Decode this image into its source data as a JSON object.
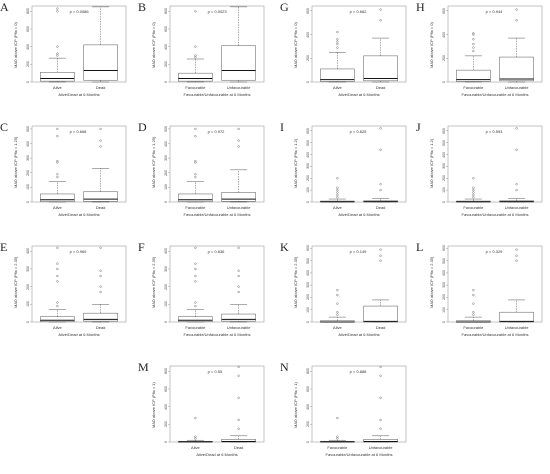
{
  "chart_data": [
    {
      "panel": "A",
      "type": "box",
      "ylabel": "MAD above ICP (Pfix = 0)",
      "xlabel": "Alive/Dead at 6 Months",
      "categories": [
        "Alive",
        "Dead"
      ],
      "p_text": "p = 0.0086",
      "yticks": [
        0,
        200,
        400,
        600,
        800
      ],
      "ylim": [
        0,
        860
      ],
      "boxes": [
        {
          "min": 0,
          "q1": 10,
          "median": 40,
          "q3": 110,
          "max": 270,
          "outliers": [
            300,
            320,
            400,
            800,
            830
          ]
        },
        {
          "min": 0,
          "q1": 20,
          "median": 130,
          "q3": 420,
          "max": 850,
          "outliers": []
        }
      ]
    },
    {
      "panel": "B",
      "type": "box",
      "ylabel": "MAD above ICP (Pfix = 0)",
      "xlabel": "Favourable/Unfavourable at 6 Months",
      "categories": [
        "Favourable",
        "Unfavourable"
      ],
      "p_text": "p = 0.0023",
      "yticks": [
        0,
        200,
        400,
        600,
        800
      ],
      "ylim": [
        0,
        860
      ],
      "boxes": [
        {
          "min": 0,
          "q1": 10,
          "median": 40,
          "q3": 100,
          "max": 260,
          "outliers": [
            280,
            300,
            400,
            800
          ]
        },
        {
          "min": 0,
          "q1": 20,
          "median": 130,
          "q3": 410,
          "max": 850,
          "outliers": []
        }
      ]
    },
    {
      "panel": "G",
      "type": "box",
      "ylabel": "MAD above ICP (Pfix = 0)",
      "xlabel": "Alive/Dead at 6 Months",
      "categories": [
        "Alive",
        "Dead"
      ],
      "p_text": "p = 0.662",
      "yticks": [
        0,
        200,
        400,
        600
      ],
      "ylim": [
        0,
        640
      ],
      "boxes": [
        {
          "min": 0,
          "q1": 5,
          "median": 20,
          "q3": 110,
          "max": 250,
          "outliers": [
            290,
            320,
            340,
            360,
            420
          ]
        },
        {
          "min": 0,
          "q1": 10,
          "median": 30,
          "q3": 220,
          "max": 370,
          "outliers": [
            520,
            610
          ]
        }
      ]
    },
    {
      "panel": "H",
      "type": "box",
      "ylabel": "MAD above ICP (Pfix = 0)",
      "xlabel": "Favourable/Unfavourable at 6 Months",
      "categories": [
        "Favourable",
        "Unfavourable"
      ],
      "p_text": "p = 0.944",
      "yticks": [
        0,
        200,
        400,
        600
      ],
      "ylim": [
        0,
        640
      ],
      "boxes": [
        {
          "min": 0,
          "q1": 5,
          "median": 20,
          "q3": 100,
          "max": 220,
          "outliers": [
            260,
            290,
            320,
            360,
            400,
            410
          ]
        },
        {
          "min": 0,
          "q1": 10,
          "median": 25,
          "q3": 210,
          "max": 370,
          "outliers": [
            520,
            610
          ]
        }
      ]
    },
    {
      "panel": "C",
      "type": "box",
      "ylabel": "MAD above ICP (Pfix = 1.25)",
      "xlabel": "Alive/Dead at 6 Months",
      "categories": [
        "Alive",
        "Dead"
      ],
      "p_text": "p = 0.668",
      "yticks": [
        0,
        100,
        200,
        300,
        400,
        500
      ],
      "ylim": [
        0,
        520
      ],
      "boxes": [
        {
          "min": 0,
          "q1": 3,
          "median": 15,
          "q3": 55,
          "max": 140,
          "outliers": [
            170,
            190,
            270,
            280,
            450,
            500
          ]
        },
        {
          "min": 0,
          "q1": 5,
          "median": 20,
          "q3": 70,
          "max": 230,
          "outliers": [
            380,
            420,
            500
          ]
        }
      ]
    },
    {
      "panel": "D",
      "type": "box",
      "ylabel": "MAD above ICP (Pfix = 1.25)",
      "xlabel": "Favourable/Unfavourable at 6 Months",
      "categories": [
        "Favourable",
        "Unfavourable"
      ],
      "p_text": "p = 0.972",
      "yticks": [
        0,
        100,
        200,
        300,
        400,
        500
      ],
      "ylim": [
        0,
        520
      ],
      "boxes": [
        {
          "min": 0,
          "q1": 3,
          "median": 15,
          "q3": 55,
          "max": 140,
          "outliers": [
            170,
            190,
            270,
            280,
            450,
            500
          ]
        },
        {
          "min": 0,
          "q1": 5,
          "median": 20,
          "q3": 65,
          "max": 220,
          "outliers": [
            380,
            420,
            500
          ]
        }
      ]
    },
    {
      "panel": "I",
      "type": "box",
      "ylabel": "MAD above ICP (Pfix = 1.2)",
      "xlabel": "Alive/Dead at 6 Months",
      "categories": [
        "Alive",
        "Dead"
      ],
      "p_text": "p = 0.825",
      "yticks": [
        0,
        100,
        200,
        300,
        400,
        500,
        600
      ],
      "ylim": [
        0,
        640
      ],
      "boxes": [
        {
          "min": 0,
          "q1": 0,
          "median": 2,
          "q3": 8,
          "max": 25,
          "outliers": [
            40,
            60,
            80,
            100,
            120,
            200
          ]
        },
        {
          "min": 0,
          "q1": 0,
          "median": 3,
          "q3": 10,
          "max": 30,
          "outliers": [
            100,
            150,
            440,
            620
          ]
        }
      ]
    },
    {
      "panel": "J",
      "type": "box",
      "ylabel": "MAD above ICP (Pfix = 1.2)",
      "xlabel": "Favourable/Unfavourable at 6 Months",
      "categories": [
        "Favourable",
        "Unfavourable"
      ],
      "p_text": "p = 0.593",
      "yticks": [
        0,
        100,
        200,
        300,
        400,
        500,
        600
      ],
      "ylim": [
        0,
        640
      ],
      "boxes": [
        {
          "min": 0,
          "q1": 0,
          "median": 2,
          "q3": 8,
          "max": 25,
          "outliers": [
            40,
            60,
            80,
            100,
            120,
            200
          ]
        },
        {
          "min": 0,
          "q1": 0,
          "median": 3,
          "q3": 10,
          "max": 30,
          "outliers": [
            100,
            150,
            440,
            620
          ]
        }
      ]
    },
    {
      "panel": "E",
      "type": "box",
      "ylabel": "MAD above ICP (Pfix = 2.35)",
      "xlabel": "Alive/Dead at 6 Months",
      "categories": [
        "Alive",
        "Dead"
      ],
      "p_text": "p = 0.969",
      "yticks": [
        0,
        100,
        200,
        300,
        400
      ],
      "ylim": [
        0,
        430
      ],
      "boxes": [
        {
          "min": 0,
          "q1": 2,
          "median": 10,
          "q3": 30,
          "max": 70,
          "outliers": [
            90,
            110,
            230,
            260,
            300,
            330,
            420
          ]
        },
        {
          "min": 0,
          "q1": 5,
          "median": 15,
          "q3": 50,
          "max": 100,
          "outliers": [
            170,
            200,
            260,
            290,
            420
          ]
        }
      ]
    },
    {
      "panel": "F",
      "type": "box",
      "ylabel": "MAD above ICP (Pfix = 2.35)",
      "xlabel": "Favourable/Unfavourable at 6 Months",
      "categories": [
        "Favourable",
        "Unfavourable"
      ],
      "p_text": "p = 0.836",
      "yticks": [
        0,
        100,
        200,
        300,
        400
      ],
      "ylim": [
        0,
        430
      ],
      "boxes": [
        {
          "min": 0,
          "q1": 2,
          "median": 10,
          "q3": 30,
          "max": 70,
          "outliers": [
            90,
            110,
            230,
            260,
            300,
            330,
            420
          ]
        },
        {
          "min": 0,
          "q1": 5,
          "median": 15,
          "q3": 45,
          "max": 100,
          "outliers": [
            170,
            200,
            260,
            290,
            420
          ]
        }
      ]
    },
    {
      "panel": "K",
      "type": "box",
      "ylabel": "MAD above ICP (Pfix = 2.35)",
      "xlabel": "Alive/Dead at 6 Months",
      "categories": [
        "Alive",
        "Dead"
      ],
      "p_text": "p = 0.149",
      "yticks": [
        0,
        100,
        200,
        300,
        400,
        500,
        600
      ],
      "ylim": [
        0,
        620
      ],
      "boxes": [
        {
          "min": 0,
          "q1": 0,
          "median": 0,
          "q3": 10,
          "max": 40,
          "outliers": [
            60,
            80,
            150,
            220,
            260
          ]
        },
        {
          "min": 0,
          "q1": 0,
          "median": 5,
          "q3": 130,
          "max": 180,
          "outliers": [
            500,
            540,
            590
          ]
        }
      ]
    },
    {
      "panel": "L",
      "type": "box",
      "ylabel": "MAD above ICP (Pfix = 2.35)",
      "xlabel": "Favourable/Unfavourable at 6 Months",
      "categories": [
        "Favourable",
        "Unfavourable"
      ],
      "p_text": "p = 0.329",
      "yticks": [
        0,
        100,
        200,
        300,
        400,
        500,
        600
      ],
      "ylim": [
        0,
        620
      ],
      "boxes": [
        {
          "min": 0,
          "q1": 0,
          "median": 0,
          "q3": 10,
          "max": 40,
          "outliers": [
            60,
            80,
            150,
            220,
            260
          ]
        },
        {
          "min": 0,
          "q1": 0,
          "median": 5,
          "q3": 80,
          "max": 180,
          "outliers": [
            500,
            540,
            590
          ]
        }
      ]
    },
    {
      "panel": "M",
      "type": "box",
      "ylabel": "MAD above ICP (Pfix = 1)",
      "xlabel": "Alive/Dead at 6 Months",
      "categories": [
        "Alive",
        "Dead"
      ],
      "p_text": "p = 0.55",
      "yticks": [
        0,
        200,
        400,
        600,
        800
      ],
      "ylim": [
        0,
        860
      ],
      "boxes": [
        {
          "min": 0,
          "q1": 0,
          "median": 2,
          "q3": 8,
          "max": 20,
          "outliers": [
            40,
            60,
            270
          ]
        },
        {
          "min": 0,
          "q1": 0,
          "median": 5,
          "q3": 30,
          "max": 70,
          "outliers": [
            150,
            250,
            500,
            750,
            850
          ]
        }
      ]
    },
    {
      "panel": "N",
      "type": "box",
      "ylabel": "MAD above ICP (Pfix = 1)",
      "xlabel": "Favourable/Unfavourable at 6 Months",
      "categories": [
        "Favourable",
        "Unfavourable"
      ],
      "p_text": "p = 0.888",
      "yticks": [
        0,
        200,
        400,
        600,
        800
      ],
      "ylim": [
        0,
        860
      ],
      "boxes": [
        {
          "min": 0,
          "q1": 0,
          "median": 2,
          "q3": 8,
          "max": 20,
          "outliers": [
            40,
            60,
            270
          ]
        },
        {
          "min": 0,
          "q1": 0,
          "median": 5,
          "q3": 30,
          "max": 70,
          "outliers": [
            150,
            250,
            500,
            750,
            850
          ]
        }
      ]
    }
  ]
}
